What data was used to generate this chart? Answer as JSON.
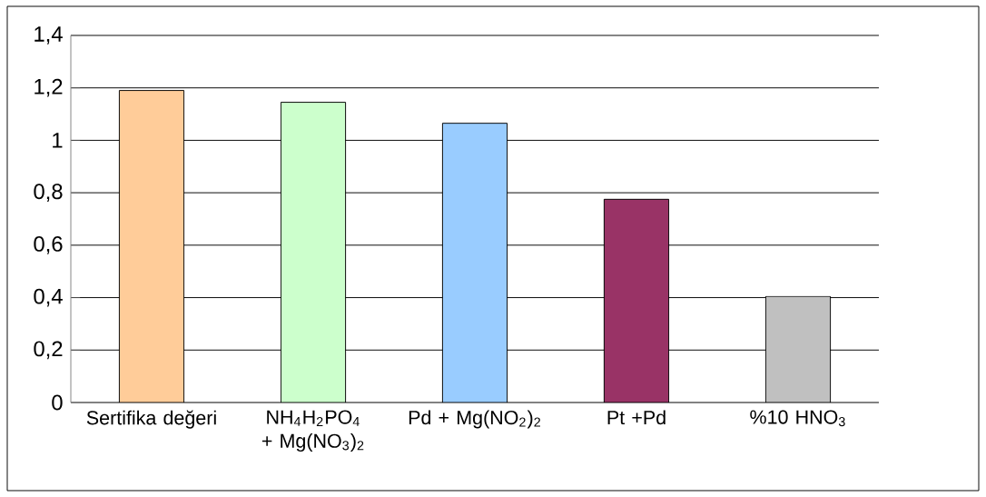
{
  "chart_data": {
    "type": "bar",
    "categories": [
      "Sertifika değeri",
      "NH$_{4}$H$_{2}$PO$_{4}$ + Mg(NO$_{3}$)$_{2}$",
      "Pd +  Mg(NO$_{2}$)$_{2}$",
      "Pt +Pd",
      "%10 HNO$_{3}$"
    ],
    "values": [
      1.19,
      1.145,
      1.065,
      0.775,
      0.405
    ],
    "colors": [
      "#ffcc99",
      "#ccffcc",
      "#99ccff",
      "#993366",
      "#c0c0c0"
    ],
    "ylim": [
      0,
      1.4
    ],
    "yticks": [
      {
        "value": 0,
        "label": "0"
      },
      {
        "value": 0.2,
        "label": "0,2"
      },
      {
        "value": 0.4,
        "label": "0,4"
      },
      {
        "value": 0.6,
        "label": "0,6"
      },
      {
        "value": 0.8,
        "label": "0,8"
      },
      {
        "value": 1,
        "label": "1"
      },
      {
        "value": 1.2,
        "label": "1,2"
      },
      {
        "value": 1.4,
        "label": "1,4"
      }
    ],
    "grid": "y"
  }
}
